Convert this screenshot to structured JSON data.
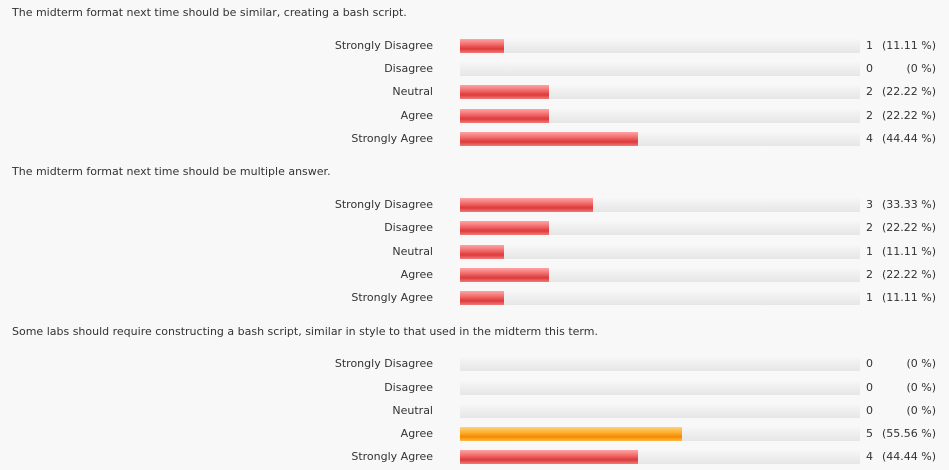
{
  "questions": [
    {
      "text": "The midterm format next time should be similar, creating a bash script.",
      "rows": [
        {
          "label": "Strongly Disagree",
          "count": "1",
          "pct": "(11.11 %)",
          "value": 11.11
        },
        {
          "label": "Disagree",
          "count": "0",
          "pct": "(0 %)",
          "value": 0
        },
        {
          "label": "Neutral",
          "count": "2",
          "pct": "(22.22 %)",
          "value": 22.22
        },
        {
          "label": "Agree",
          "count": "2",
          "pct": "(22.22 %)",
          "value": 22.22
        },
        {
          "label": "Strongly Agree",
          "count": "4",
          "pct": "(44.44 %)",
          "value": 44.44
        }
      ]
    },
    {
      "text": "The midterm format next time should be multiple answer.",
      "rows": [
        {
          "label": "Strongly Disagree",
          "count": "3",
          "pct": "(33.33 %)",
          "value": 33.33
        },
        {
          "label": "Disagree",
          "count": "2",
          "pct": "(22.22 %)",
          "value": 22.22
        },
        {
          "label": "Neutral",
          "count": "1",
          "pct": "(11.11 %)",
          "value": 11.11
        },
        {
          "label": "Agree",
          "count": "2",
          "pct": "(22.22 %)",
          "value": 22.22
        },
        {
          "label": "Strongly Agree",
          "count": "1",
          "pct": "(11.11 %)",
          "value": 11.11
        }
      ]
    },
    {
      "text": "Some labs should require constructing a bash script, similar in style to that used in the midterm this term.",
      "rows": [
        {
          "label": "Strongly Disagree",
          "count": "0",
          "pct": "(0 %)",
          "value": 0
        },
        {
          "label": "Disagree",
          "count": "0",
          "pct": "(0 %)",
          "value": 0
        },
        {
          "label": "Neutral",
          "count": "0",
          "pct": "(0 %)",
          "value": 0
        },
        {
          "label": "Agree",
          "count": "5",
          "pct": "(55.56 %)",
          "value": 55.56,
          "highlight": true
        },
        {
          "label": "Strongly Agree",
          "count": "4",
          "pct": "(44.44 %)",
          "value": 44.44
        }
      ]
    }
  ],
  "colors": {
    "bar": "#e04848",
    "highlight_bar": "#ff9a10",
    "track": "#ececec",
    "background": "#f8f8f8"
  }
}
